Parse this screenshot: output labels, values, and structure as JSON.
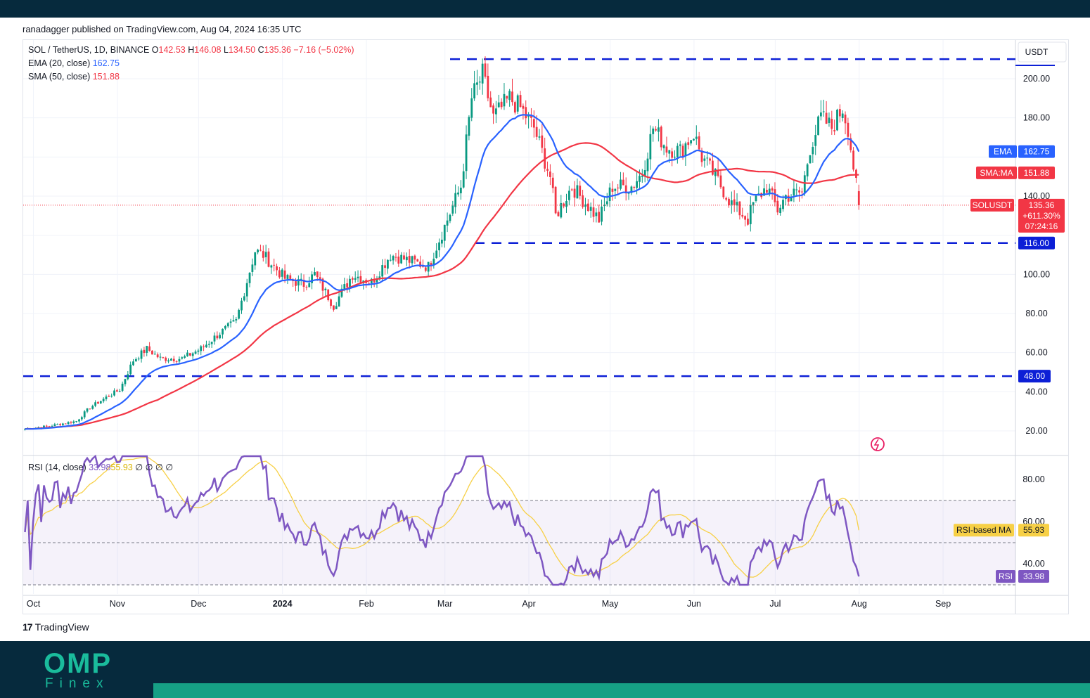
{
  "header": {
    "publisher": "ranadagger published on TradingView.com, Aug 04, 2024 16:35 UTC"
  },
  "legend": {
    "symbol": "SOL / TetherUS, 1D, BINANCE",
    "o_label": "O",
    "o": "142.53",
    "h_label": "H",
    "h": "146.08",
    "l_label": "L",
    "l": "134.50",
    "c_label": "C",
    "c": "135.36",
    "change": "−7.16 (−5.02%)",
    "ema_label": "EMA (20, close)",
    "ema_value": "162.75",
    "sma_label": "SMA (50, close)",
    "sma_value": "151.88",
    "rsi_label": "RSI (14, close)",
    "rsi_value": "33.98",
    "rsi_ma_value": "55.93",
    "rsi_extra": "∅ ∅ ∅ ∅"
  },
  "currency": "USDT",
  "badges": {
    "ema": {
      "label": "EMA",
      "value": "162.75"
    },
    "sma": {
      "label": "SMA:MA",
      "value": "151.88"
    },
    "price": {
      "label": "SOLUSDT",
      "value": "135.36",
      "change": "+611.30%",
      "timer": "07:24:16"
    },
    "line116": "116.00",
    "line48": "48.00",
    "rsi_ma": {
      "label": "RSI-based MA",
      "value": "55.93"
    },
    "rsi": {
      "label": "RSI",
      "value": "33.98"
    }
  },
  "footer": {
    "brand": "TradingView",
    "logo_main": "OMP",
    "logo_sub": "Finex"
  },
  "colors": {
    "up": "#089981",
    "down": "#f23645",
    "ema": "#2962ff",
    "sma": "#f23645",
    "rsi": "#7e57c2",
    "rsi_ma": "#f7d046",
    "level_line": "#0c1fd6"
  },
  "chart_data": {
    "type": "candlestick",
    "x_ticks": [
      "Oct",
      "Nov",
      "Dec",
      "2024",
      "Feb",
      "Mar",
      "Apr",
      "May",
      "Jun",
      "Jul",
      "Aug",
      "Sep"
    ],
    "y_ticks": [
      "20.00",
      "40.00",
      "60.00",
      "80.00",
      "100.00",
      "120.00",
      "140.00",
      "160.00",
      "180.00",
      "200.00"
    ],
    "ylim": [
      0,
      212
    ],
    "horizontal_levels": [
      210,
      116,
      48
    ],
    "close_anchors": [
      [
        "2023-10-01",
        21
      ],
      [
        "2023-10-10",
        22.5
      ],
      [
        "2023-10-20",
        25
      ],
      [
        "2023-10-25",
        32
      ],
      [
        "2023-11-01",
        38
      ],
      [
        "2023-11-05",
        41
      ],
      [
        "2023-11-10",
        56
      ],
      [
        "2023-11-15",
        62
      ],
      [
        "2023-11-20",
        57
      ],
      [
        "2023-11-28",
        57
      ],
      [
        "2023-12-05",
        62
      ],
      [
        "2023-12-12",
        70
      ],
      [
        "2023-12-18",
        76
      ],
      [
        "2023-12-25",
        112
      ],
      [
        "2023-12-28",
        110
      ],
      [
        "2024-01-05",
        98
      ],
      [
        "2024-01-12",
        95
      ],
      [
        "2024-01-16",
        100
      ],
      [
        "2024-01-23",
        84
      ],
      [
        "2024-01-30",
        100
      ],
      [
        "2024-02-06",
        96
      ],
      [
        "2024-02-13",
        110
      ],
      [
        "2024-02-20",
        107
      ],
      [
        "2024-02-27",
        104
      ],
      [
        "2024-03-05",
        128
      ],
      [
        "2024-03-10",
        145
      ],
      [
        "2024-03-14",
        190
      ],
      [
        "2024-03-18",
        202
      ],
      [
        "2024-03-22",
        180
      ],
      [
        "2024-03-28",
        190
      ],
      [
        "2024-04-01",
        185
      ],
      [
        "2024-04-06",
        175
      ],
      [
        "2024-04-12",
        150
      ],
      [
        "2024-04-14",
        130
      ],
      [
        "2024-04-20",
        145
      ],
      [
        "2024-04-26",
        135
      ],
      [
        "2024-04-30",
        128
      ],
      [
        "2024-05-05",
        145
      ],
      [
        "2024-05-12",
        145
      ],
      [
        "2024-05-16",
        152
      ],
      [
        "2024-05-20",
        175
      ],
      [
        "2024-05-25",
        165
      ],
      [
        "2024-05-30",
        163
      ],
      [
        "2024-06-04",
        172
      ],
      [
        "2024-06-07",
        160
      ],
      [
        "2024-06-12",
        150
      ],
      [
        "2024-06-18",
        136
      ],
      [
        "2024-06-24",
        128
      ],
      [
        "2024-06-26",
        136
      ],
      [
        "2024-07-01",
        145
      ],
      [
        "2024-07-05",
        133
      ],
      [
        "2024-07-08",
        140
      ],
      [
        "2024-07-14",
        142
      ],
      [
        "2024-07-17",
        165
      ],
      [
        "2024-07-21",
        180
      ],
      [
        "2024-07-25",
        175
      ],
      [
        "2024-07-29",
        185
      ],
      [
        "2024-07-31",
        175
      ],
      [
        "2024-08-02",
        155
      ],
      [
        "2024-08-04",
        135.36
      ]
    ],
    "ema_last": 162.75,
    "sma_last": 151.88,
    "rsi": {
      "ylim": [
        28,
        92
      ],
      "y_ticks": [
        "40.00",
        "60.00",
        "80.00"
      ],
      "bands": [
        70,
        50,
        30
      ],
      "last": 33.98,
      "ma_last": 55.93
    }
  }
}
